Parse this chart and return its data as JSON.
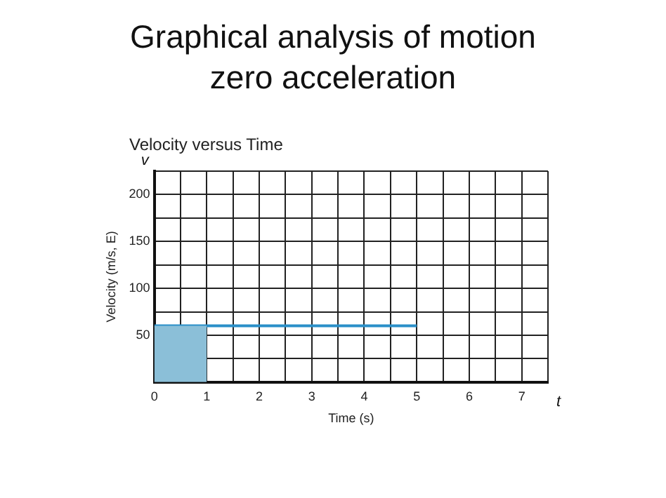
{
  "chart_data": {
    "type": "line",
    "title": "Graphical analysis of motion zero acceleration",
    "subtitle": "Velocity versus Time",
    "xlabel": "Time (s)",
    "ylabel": "Velocity (m/s, E)",
    "annotations": [
      "v",
      "t"
    ],
    "series": [
      {
        "type": "area",
        "color": "#8bbfd8",
        "x": [
          0,
          1
        ],
        "values": [
          60,
          60
        ]
      },
      {
        "type": "line",
        "color": "#2a8fc8",
        "x": [
          0,
          5
        ],
        "values": [
          60,
          60
        ]
      }
    ],
    "xlim": [
      0,
      7.5
    ],
    "xticks": [
      0,
      {
        "value": 0.5,
        "label": null
      },
      1,
      {
        "value": 1.5,
        "label": null
      },
      2,
      {
        "value": 2.5,
        "label": null
      },
      3,
      {
        "value": 3.5,
        "label": null
      },
      4,
      {
        "value": 4.5,
        "label": null
      },
      5,
      {
        "value": 5.5,
        "label": null
      },
      6,
      {
        "value": 6.5,
        "label": null
      },
      7,
      {
        "value": 7.5,
        "label": null
      }
    ],
    "ylim": [
      0,
      225
    ],
    "yticks": [
      {
        "value": 0,
        "label": null
      },
      {
        "value": 25,
        "label": null
      },
      50,
      {
        "value": 75,
        "label": null
      },
      100,
      {
        "value": 125,
        "label": null
      },
      150,
      {
        "value": 175,
        "label": null
      },
      200,
      {
        "value": 225,
        "label": null
      }
    ],
    "grid": true,
    "marker": "none",
    "legend": false
  }
}
